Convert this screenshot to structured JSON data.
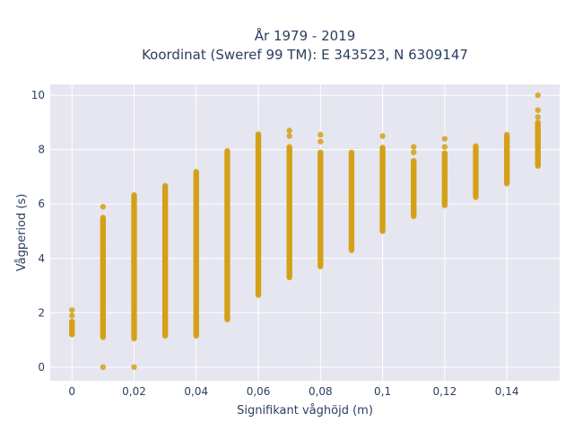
{
  "chart_data": {
    "type": "scatter",
    "title": "År 1979 - 2019",
    "subtitle": "Koordinat (Sweref 99 TM): E 343523, N 6309147",
    "xlabel": "Signifikant våghöjd (m)",
    "ylabel": "Vågperiod (s)",
    "xlim": [
      -0.007,
      0.157
    ],
    "ylim": [
      -0.5,
      10.4
    ],
    "x_ticks": [
      0,
      0.02,
      0.04,
      0.06,
      0.08,
      0.1,
      0.12,
      0.14
    ],
    "x_tick_labels": [
      "0",
      "0,02",
      "0,04",
      "0,06",
      "0,08",
      "0,1",
      "0,12",
      "0,14"
    ],
    "y_ticks": [
      0,
      2,
      4,
      6,
      8,
      10
    ],
    "y_tick_labels": [
      "0",
      "2",
      "4",
      "6",
      "8",
      "10"
    ],
    "grid": true,
    "legend": "none",
    "marker_color": "#d4a017",
    "background_color": "#e5e6ef",
    "columns": [
      {
        "x": 0.0,
        "ymin": 1.2,
        "ymax": 1.7,
        "extra": [
          1.9,
          2.1
        ]
      },
      {
        "x": 0.01,
        "ymin": 1.1,
        "ymax": 5.5,
        "extra": [
          0.0,
          5.9
        ]
      },
      {
        "x": 0.02,
        "ymin": 1.05,
        "ymax": 6.35,
        "extra": [
          0.0
        ]
      },
      {
        "x": 0.03,
        "ymin": 1.15,
        "ymax": 6.7,
        "extra": []
      },
      {
        "x": 0.04,
        "ymin": 1.15,
        "ymax": 7.2,
        "extra": []
      },
      {
        "x": 0.05,
        "ymin": 1.75,
        "ymax": 7.95,
        "extra": []
      },
      {
        "x": 0.06,
        "ymin": 2.65,
        "ymax": 8.6,
        "extra": []
      },
      {
        "x": 0.07,
        "ymin": 3.3,
        "ymax": 8.1,
        "extra": [
          8.5,
          8.7
        ]
      },
      {
        "x": 0.08,
        "ymin": 3.7,
        "ymax": 7.9,
        "extra": [
          8.3,
          8.55
        ]
      },
      {
        "x": 0.09,
        "ymin": 4.3,
        "ymax": 7.9,
        "extra": []
      },
      {
        "x": 0.1,
        "ymin": 5.0,
        "ymax": 8.1,
        "extra": [
          8.5
        ]
      },
      {
        "x": 0.11,
        "ymin": 5.55,
        "ymax": 7.6,
        "extra": [
          7.9,
          8.1
        ]
      },
      {
        "x": 0.12,
        "ymin": 5.95,
        "ymax": 7.9,
        "extra": [
          8.1,
          8.4
        ]
      },
      {
        "x": 0.13,
        "ymin": 6.25,
        "ymax": 8.15,
        "extra": []
      },
      {
        "x": 0.14,
        "ymin": 6.75,
        "ymax": 8.55,
        "extra": []
      },
      {
        "x": 0.15,
        "ymin": 7.4,
        "ymax": 9.0,
        "extra": [
          9.2,
          9.45,
          10.0
        ]
      }
    ]
  }
}
